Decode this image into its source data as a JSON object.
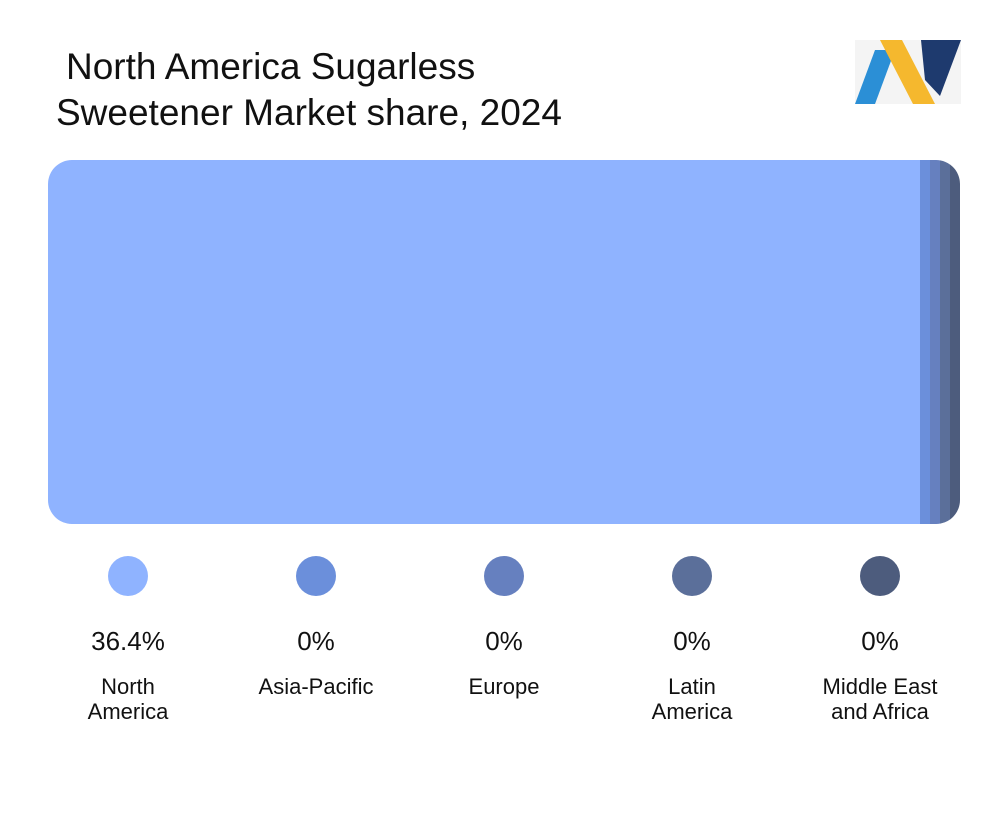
{
  "title": {
    "line1": "North America Sugarless",
    "line2": "Sweetener Market share, 2024"
  },
  "logo": {
    "icon": "brand-logo-icon",
    "colors": [
      "#2b8fd6",
      "#f5b82e",
      "#1e3a6e"
    ]
  },
  "chart_data": {
    "type": "bar",
    "orientation": "horizontal-stacked",
    "title": "North America Sugarless Sweetener Market share, 2024",
    "categories": [
      "North America",
      "Asia-Pacific",
      "Europe",
      "Latin America",
      "Middle East and Africa"
    ],
    "values": [
      36.4,
      0,
      0,
      0,
      0
    ],
    "value_labels": [
      "36.4%",
      "0%",
      "0%",
      "0%",
      "0%"
    ],
    "colors": [
      "#8fb3ff",
      "#6b8fdb",
      "#6680bf",
      "#5b6f9a",
      "#4d5c7d"
    ],
    "legend_position": "bottom"
  },
  "legend": [
    {
      "label": "North\nAmerica",
      "value": "36.4%"
    },
    {
      "label": "Asia-Pacific",
      "value": "0%"
    },
    {
      "label": "Europe",
      "value": "0%"
    },
    {
      "label": "Latin\nAmerica",
      "value": "0%"
    },
    {
      "label": "Middle East\nand Africa",
      "value": "0%"
    }
  ]
}
